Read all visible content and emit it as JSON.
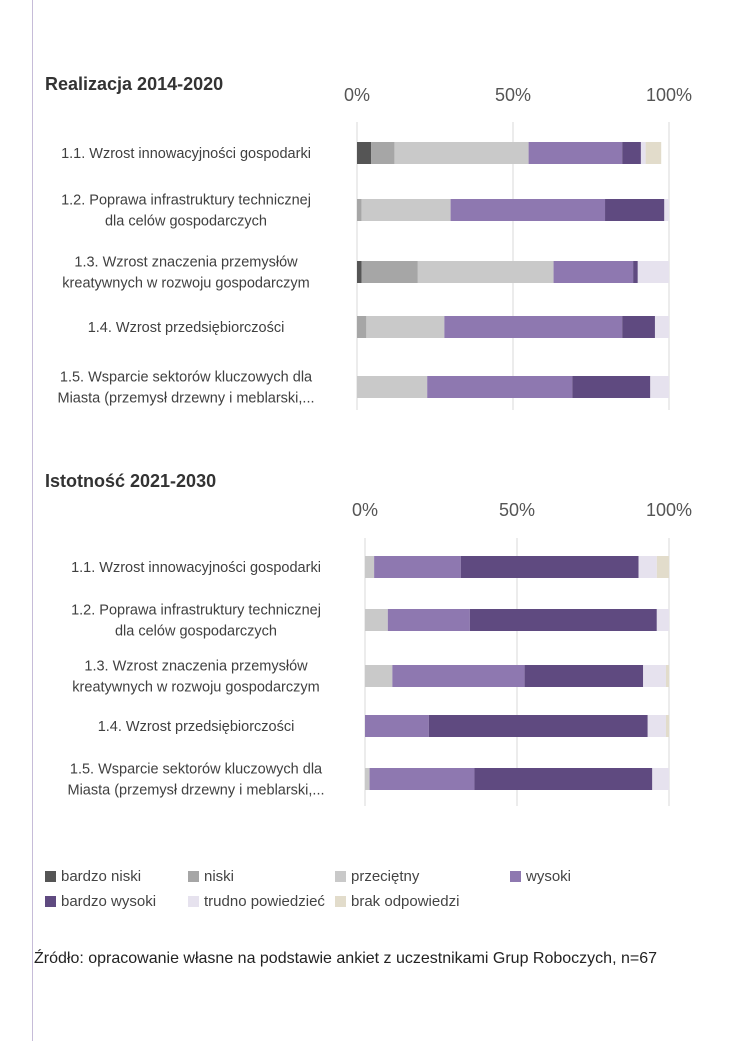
{
  "chart_data": [
    {
      "type": "bar",
      "orientation": "horizontal",
      "stacked": "percent",
      "title": "Realizacja 2014-2020",
      "tick_labels": [
        "0%",
        "50%",
        "100%"
      ],
      "xlim": [
        0,
        100
      ],
      "categories": [
        "1.1. Wzrost innowacyjności gospodarki",
        "1.2. Poprawa infrastruktury technicznej dla celów gospodarczych",
        "1.3. Wzrost znaczenia przemysłów kreatywnych w rozwoju gospodarczym",
        "1.4. Wzrost przedsiębiorczości",
        "1.5. Wsparcie sektorów kluczowych dla Miasta (przemysł drzewny i meblarski,..."
      ],
      "series": [
        {
          "name": "bardzo niski",
          "color": "#555555",
          "values": [
            4.5,
            0,
            1.5,
            0,
            0
          ]
        },
        {
          "name": "niski",
          "color": "#a6a6a6",
          "values": [
            7.5,
            1.5,
            18,
            3,
            0
          ]
        },
        {
          "name": "przeciętny",
          "color": "#c9c9c9",
          "values": [
            43,
            28.5,
            43.5,
            25,
            22.5
          ]
        },
        {
          "name": "wysoki",
          "color": "#8e78b0",
          "values": [
            30,
            49.5,
            25.5,
            57,
            46.5
          ]
        },
        {
          "name": "bardzo wysoki",
          "color": "#5f4a80",
          "values": [
            6,
            19,
            1.5,
            10.5,
            25
          ]
        },
        {
          "name": "trudno powiedzieć",
          "color": "#e6e2ee",
          "values": [
            1.5,
            1.5,
            10,
            4.5,
            6
          ]
        },
        {
          "name": "brak odpowiedzi",
          "color": "#e2dccb",
          "values": [
            5,
            0,
            0,
            0,
            0
          ]
        }
      ]
    },
    {
      "type": "bar",
      "orientation": "horizontal",
      "stacked": "percent",
      "title": "Istotność 2021-2030",
      "tick_labels": [
        "0%",
        "50%",
        "100%"
      ],
      "xlim": [
        0,
        100
      ],
      "categories": [
        "1.1. Wzrost innowacyjności gospodarki",
        "1.2. Poprawa infrastruktury technicznej dla celów gospodarczych",
        "1.3. Wzrost znaczenia przemysłów kreatywnych w rozwoju gospodarczym",
        "1.4. Wzrost przedsiębiorczości",
        "1.5. Wsparcie sektorów kluczowych dla Miasta (przemysł drzewny i meblarski,..."
      ],
      "series": [
        {
          "name": "bardzo niski",
          "color": "#555555",
          "values": [
            0,
            0,
            0,
            0,
            0
          ]
        },
        {
          "name": "niski",
          "color": "#a6a6a6",
          "values": [
            0,
            0,
            0,
            0,
            0
          ]
        },
        {
          "name": "przeciętny",
          "color": "#c9c9c9",
          "values": [
            3,
            7.5,
            9,
            0,
            1.5
          ]
        },
        {
          "name": "wysoki",
          "color": "#8e78b0",
          "values": [
            28.5,
            27,
            43.5,
            21,
            34.5
          ]
        },
        {
          "name": "bardzo wysoki",
          "color": "#5f4a80",
          "values": [
            58.5,
            61.5,
            39,
            72,
            58.5
          ]
        },
        {
          "name": "trudno powiedzieć",
          "color": "#e6e2ee",
          "values": [
            6,
            4,
            7.5,
            6,
            5.5
          ]
        },
        {
          "name": "brak odpowiedzi",
          "color": "#e2dccb",
          "values": [
            4,
            0,
            1,
            1,
            0
          ]
        }
      ]
    }
  ],
  "source_text": "Źródło: opracowanie własne na podstawie ankiet z uczestnikami Grup Roboczych, n=67"
}
